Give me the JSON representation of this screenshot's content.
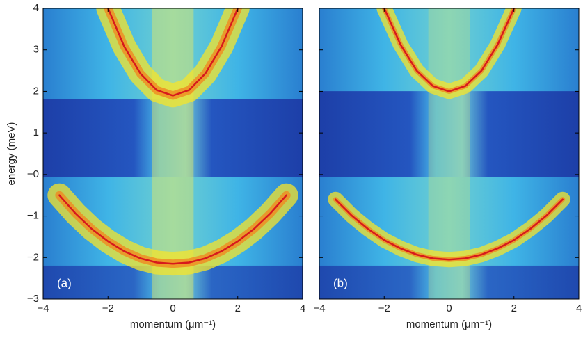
{
  "chart_data": [
    {
      "type": "line",
      "panel_label": "(a)",
      "xlabel": "momentum (μm⁻¹)",
      "ylabel": "energy (meV)",
      "xlim": [
        -4,
        4
      ],
      "ylim": [
        -3,
        4
      ],
      "xticks": [
        {
          "value": -4,
          "label": "−4"
        },
        {
          "value": -2,
          "label": "−2"
        },
        0,
        2,
        4
      ],
      "yticks": [
        {
          "value": -3,
          "label": "−3"
        },
        {
          "value": -2,
          "label": "−2"
        },
        {
          "value": -1,
          "label": "−1"
        },
        {
          "value": 0,
          "label": "−0"
        },
        1,
        2,
        3,
        4
      ],
      "series": [
        {
          "color": "#d7191c",
          "x": [
            -2,
            -1.5,
            -1,
            -0.5,
            0,
            0.5,
            1,
            1.5,
            2
          ],
          "values": [
            4.0,
            3.08,
            2.43,
            2.03,
            1.9,
            2.03,
            2.43,
            3.08,
            4.0
          ]
        },
        {
          "color": "#d7191c",
          "x": [
            -3.5,
            -3,
            -2.5,
            -2,
            -1.5,
            -1,
            -0.5,
            0,
            0.5,
            1,
            1.5,
            2,
            2.5,
            3,
            3.5
          ],
          "values": [
            -0.5,
            -0.94,
            -1.31,
            -1.61,
            -1.85,
            -2.02,
            -2.12,
            -2.15,
            -2.12,
            -2.02,
            -1.85,
            -1.61,
            -1.31,
            -0.94,
            -0.5
          ]
        }
      ]
    },
    {
      "type": "line",
      "panel_label": "(b)",
      "xlabel": "momentum (μm⁻¹)",
      "xlim": [
        -4,
        4
      ],
      "ylim": [
        -3,
        4
      ],
      "xticks": [
        {
          "value": -4,
          "label": "−4"
        },
        {
          "value": -2,
          "label": "−2"
        },
        0,
        2,
        4
      ],
      "yticks": [
        -3,
        -2,
        -1,
        0,
        1,
        2,
        3,
        4
      ],
      "series": [
        {
          "color": "#d7191c",
          "x": [
            -2,
            -1.5,
            -1,
            -0.5,
            0,
            0.5,
            1,
            1.5,
            2
          ],
          "values": [
            4.0,
            3.13,
            2.5,
            2.13,
            2.0,
            2.13,
            2.5,
            3.13,
            4.0
          ]
        },
        {
          "color": "#d7191c",
          "x": [
            -3.5,
            -3,
            -2.5,
            -2,
            -1.5,
            -1,
            -0.5,
            0,
            0.5,
            1,
            1.5,
            2,
            2.5,
            3,
            3.5
          ],
          "values": [
            -0.6,
            -0.99,
            -1.31,
            -1.58,
            -1.78,
            -1.93,
            -2.02,
            -2.05,
            -2.02,
            -1.93,
            -1.78,
            -1.58,
            -1.31,
            -0.99,
            -0.6
          ]
        }
      ]
    }
  ]
}
